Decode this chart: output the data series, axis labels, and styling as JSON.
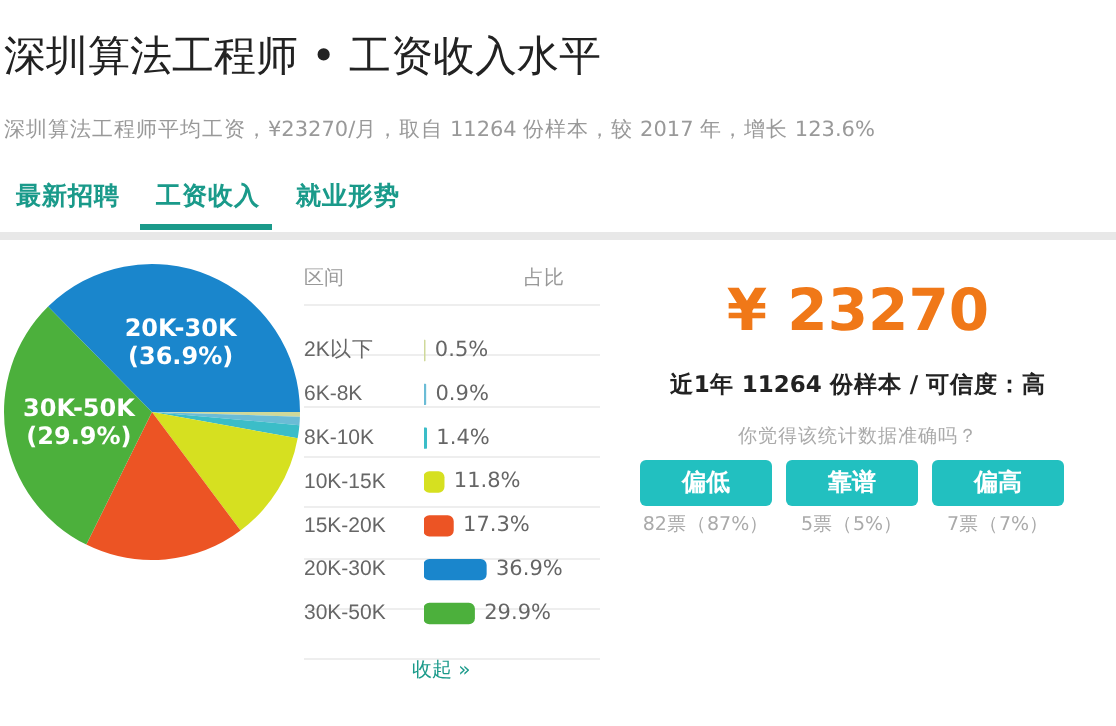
{
  "chart_data": [
    {
      "type": "pie",
      "title": "深圳算法工程师 • 工资收入水平",
      "subtitle": "深圳算法工程师平均工资，¥23270/月，取自 11264 份样本，较 2017 年，增长 123.6%",
      "annotations": [
        "最新招聘",
        "工资收入",
        "就业形势"
      ],
      "categories": [
        null,
        null,
        null,
        null,
        null,
        "30K-50K",
        "20K-30K"
      ],
      "values": [
        0.5,
        0.9,
        1.4,
        11.8,
        17.3,
        29.9,
        36.9
      ],
      "colors": [
        "#cfd99a",
        "#6bbcd6",
        "#3bbdc8",
        "#d6e020",
        "#ec5424",
        "#4cb03c",
        "#1a86cc"
      ],
      "value_labels": [
        null,
        null,
        null,
        null,
        null,
        "(29.9%)",
        "(36.9%)"
      ]
    },
    {
      "type": "bar",
      "orientation": "horizontal",
      "ylabel": "区间",
      "xlabel": "占比",
      "annotations": [
        "收起 »"
      ],
      "categories": [
        "2K以下",
        "6K-8K",
        "8K-10K",
        "10K-15K",
        "15K-20K",
        "20K-30K",
        "30K-50K"
      ],
      "values": [
        0.5,
        0.9,
        1.4,
        11.8,
        17.3,
        36.9,
        29.9
      ],
      "colors": [
        "#cfd99a",
        "#6bbcd6",
        "#3bbdc8",
        "#d6e020",
        "#ec5424",
        "#1a86cc",
        "#4cb03c"
      ],
      "value_labels": [
        "0.5%",
        "0.9%",
        "1.4%",
        "11.8%",
        "17.3%",
        "36.9%",
        "29.9%"
      ]
    },
    {
      "type": "other",
      "annotations": [
        "¥ 23270",
        "近1年 11264 份样本 / 可信度：高",
        "你觉得该统计数据准确吗？",
        "偏低",
        "靠谱",
        "偏高",
        "82票（87%）",
        "5票（5%）",
        "7票（7%）"
      ]
    }
  ]
}
